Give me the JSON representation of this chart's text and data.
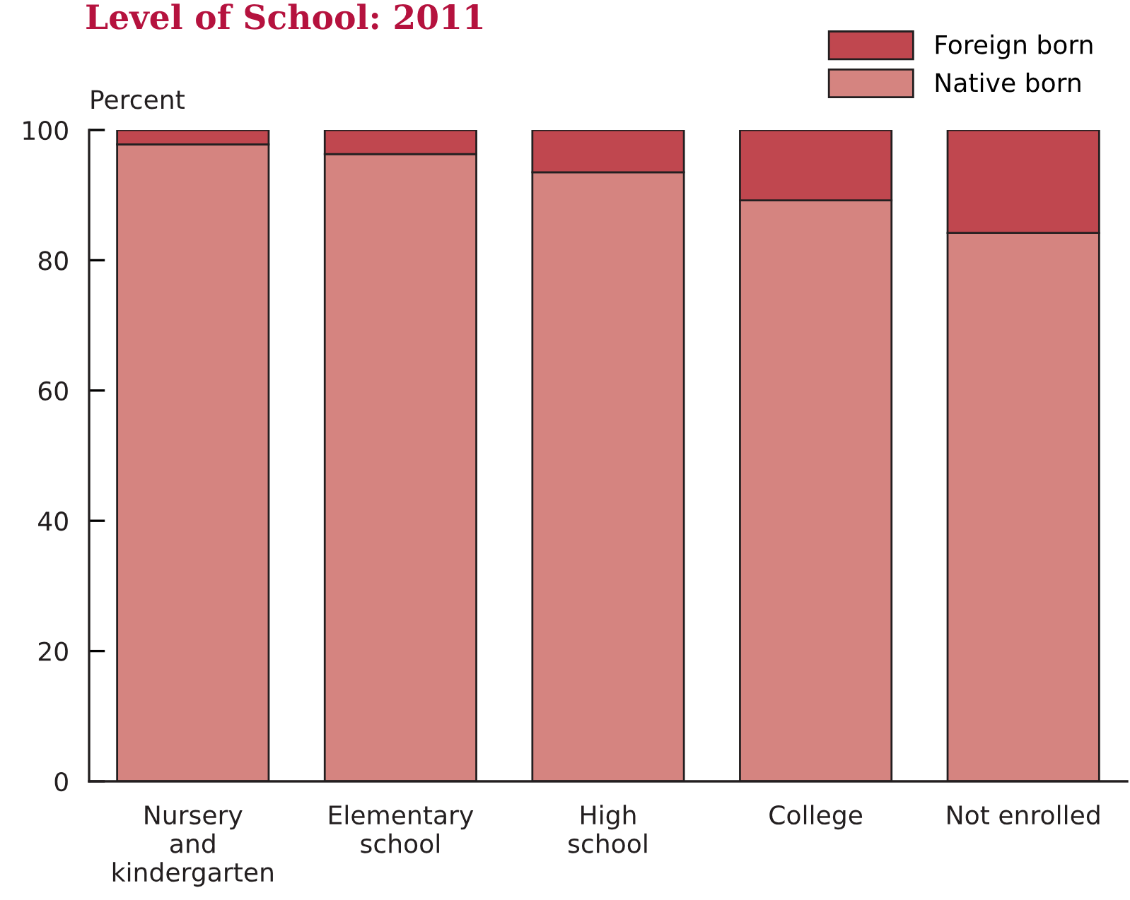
{
  "chart_data": {
    "type": "bar",
    "title": "Level of School: 2011",
    "ylabel": "Percent",
    "categories": [
      "Nursery\nand\nkindergarten",
      "Elementary\nschool",
      "High\nschool",
      "College",
      "Not enrolled"
    ],
    "stacked": true,
    "series": [
      {
        "name": "Native born",
        "color": "#d58480",
        "values": [
          97.8,
          96.3,
          93.5,
          89.2,
          84.2
        ]
      },
      {
        "name": "Foreign born",
        "color": "#c0474f",
        "values": [
          2.2,
          3.7,
          6.5,
          10.8,
          15.8
        ]
      }
    ],
    "ylim": [
      0,
      100
    ],
    "yticks": [
      0,
      20,
      40,
      60,
      80,
      100
    ],
    "grid": false,
    "legend": "top right"
  }
}
